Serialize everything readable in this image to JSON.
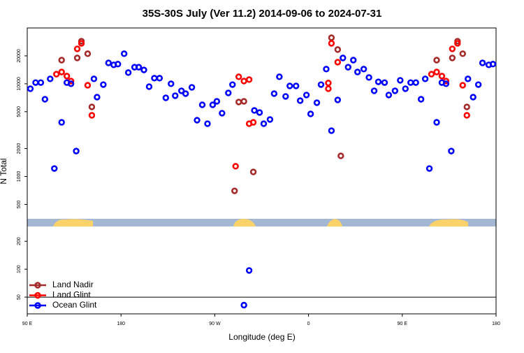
{
  "chart_data": {
    "type": "scatter",
    "title": "35S-30S July (Ver 11.2)   2014-09-06 to 2024-07-31",
    "x_label": "Longitude (deg E)",
    "y_label": "N Total",
    "xlim": [
      90,
      540
    ],
    "xticks": [
      {
        "value": 90,
        "label": "90 E"
      },
      180,
      {
        "value": 270,
        "label": "90 W"
      },
      {
        "value": 360,
        "label": "0"
      },
      {
        "value": 450,
        "label": "90 E"
      },
      {
        "value": 540,
        "label": "180"
      }
    ],
    "ylim": [
      33,
      40000
    ],
    "log_y": true,
    "yticks": [
      50,
      100,
      200,
      500,
      1000,
      2000,
      5000,
      10000,
      20000
    ],
    "reference_line": 50,
    "legend": "bottom-left",
    "series": [
      {
        "name": "Land Nadir",
        "color": "#a52a2a",
        "x": [
          123,
          138,
          142,
          148,
          152,
          289,
          293,
          298,
          307,
          382,
          388,
          391,
          483,
          498,
          503,
          508,
          512
        ],
        "values": [
          18000,
          19000,
          28800,
          21100,
          5630,
          700,
          6360,
          6470,
          1120,
          31400,
          23400,
          1670,
          18000,
          19000,
          28800,
          21100,
          5630
        ]
      },
      {
        "name": "Land Glint",
        "color": "#ff0000",
        "x": [
          118,
          123,
          128,
          132,
          138,
          142,
          148,
          152,
          290,
          293,
          298,
          303,
          303,
          307,
          379,
          379,
          382,
          388,
          478,
          483,
          488,
          492,
          498,
          503,
          508,
          512
        ],
        "values": [
          12700,
          13400,
          12100,
          10700,
          23800,
          27300,
          9640,
          4570,
          1290,
          11900,
          10700,
          11100,
          3710,
          3840,
          10200,
          8850,
          27300,
          17100,
          12700,
          13400,
          12100,
          10700,
          23800,
          27300,
          9640,
          4570
        ]
      },
      {
        "name": "Ocean Glint",
        "color": "#0000ff",
        "x": [
          93,
          98,
          103,
          107,
          112,
          116,
          123,
          128,
          132,
          137,
          154,
          157,
          163,
          168,
          173,
          177,
          183,
          187,
          193,
          197,
          202,
          207,
          212,
          217,
          223,
          228,
          232,
          238,
          242,
          248,
          253,
          258,
          263,
          268,
          272,
          277,
          283,
          287,
          298,
          303,
          308,
          313,
          317,
          323,
          327,
          332,
          338,
          342,
          348,
          352,
          358,
          362,
          368,
          372,
          377,
          382,
          388,
          393,
          398,
          403,
          407,
          413,
          418,
          423,
          427,
          433,
          437,
          443,
          448,
          453,
          458,
          463,
          468,
          472,
          476,
          483,
          488,
          492,
          497,
          513,
          518,
          523,
          527,
          533,
          537
        ],
        "values": [
          8850,
          10300,
          10300,
          6810,
          11300,
          1220,
          3840,
          10300,
          10000,
          1880,
          11300,
          7180,
          9800,
          16800,
          16000,
          16300,
          21100,
          13200,
          15100,
          15100,
          14100,
          9310,
          11500,
          11500,
          7060,
          10000,
          7440,
          8400,
          7830,
          9160,
          4050,
          5930,
          3710,
          5930,
          6470,
          4820,
          7970,
          9800,
          41,
          97,
          5160,
          4900,
          3710,
          4120,
          7830,
          11900,
          7310,
          9480,
          9480,
          6580,
          7570,
          4730,
          6250,
          9800,
          14400,
          3120,
          6700,
          19000,
          15100,
          18000,
          13400,
          14400,
          11700,
          8400,
          10500,
          10300,
          7570,
          8400,
          10900,
          8850,
          10300,
          10300,
          6810,
          11300,
          1220,
          3840,
          10300,
          10000,
          1880,
          11300,
          7180,
          9800,
          16800,
          16000,
          16300
        ]
      }
    ]
  }
}
